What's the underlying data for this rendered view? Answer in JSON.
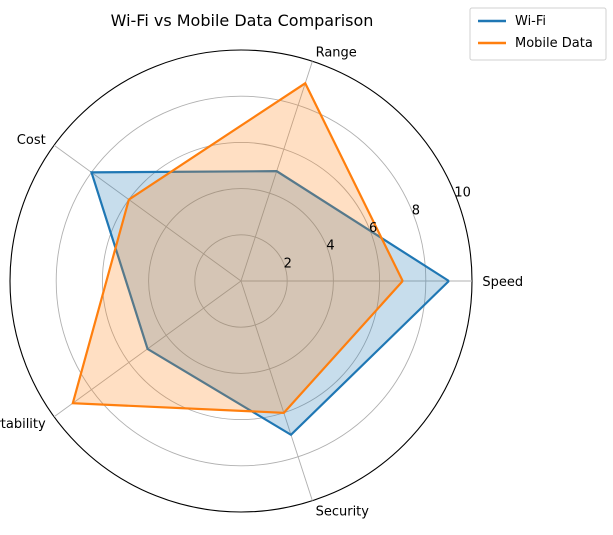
{
  "chart_data": {
    "type": "radar",
    "title": "Wi-Fi vs Mobile Data Comparison",
    "axes": [
      "Speed",
      "Range",
      "Cost",
      "Portability",
      "Security"
    ],
    "series": [
      {
        "name": "Wi-Fi",
        "color": "#1f77b4",
        "values": [
          9,
          5,
          8,
          5,
          7
        ]
      },
      {
        "name": "Mobile Data",
        "color": "#ff7f0e",
        "values": [
          7,
          9,
          6,
          9,
          6
        ]
      }
    ],
    "rlim": [
      0,
      10
    ],
    "ticks": [
      2,
      4,
      6,
      8,
      10
    ],
    "legend_location": "top-right"
  }
}
